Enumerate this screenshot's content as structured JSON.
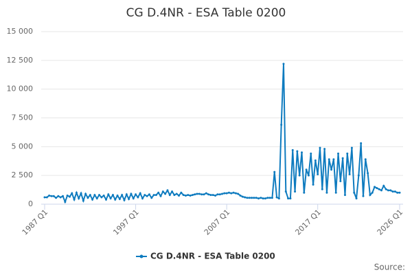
{
  "chart_data": {
    "type": "line",
    "title": "CG D.4NR - ESA Table 0200",
    "source": "Source:",
    "categories": [
      "1987 Q1",
      null,
      null,
      null,
      null,
      null,
      null,
      null,
      null,
      null,
      null,
      null,
      null,
      null,
      null,
      null,
      null,
      null,
      null,
      null,
      null,
      null,
      null,
      null,
      null,
      null,
      null,
      null,
      null,
      null,
      null,
      null,
      null,
      null,
      null,
      null,
      null,
      null,
      null,
      null,
      "1997 Q1",
      null,
      null,
      null,
      null,
      null,
      null,
      null,
      null,
      null,
      null,
      null,
      null,
      null,
      null,
      null,
      null,
      null,
      null,
      null,
      null,
      null,
      null,
      null,
      null,
      null,
      null,
      null,
      null,
      null,
      null,
      null,
      null,
      null,
      null,
      null,
      null,
      null,
      null,
      null,
      "2007 Q1",
      null,
      null,
      null,
      null,
      null,
      null,
      null,
      null,
      null,
      null,
      null,
      null,
      null,
      null,
      null,
      null,
      null,
      null,
      null,
      null,
      null,
      null,
      null,
      null,
      null,
      null,
      null,
      null,
      null,
      null,
      null,
      null,
      null,
      null,
      null,
      null,
      null,
      null,
      null,
      "2017 Q1",
      null,
      null,
      null,
      null,
      null,
      null,
      null,
      null,
      null,
      null,
      null,
      null,
      null,
      null,
      null,
      null,
      null,
      null,
      null,
      null,
      null,
      null,
      null,
      null,
      null,
      null,
      null,
      null,
      null,
      null,
      null,
      null,
      null,
      null,
      null,
      "2026 Q1"
    ],
    "series": [
      {
        "name": "CG D.4NR - ESA Table 0200",
        "color": "#0e7bbf",
        "values": [
          600,
          600,
          750,
          700,
          700,
          550,
          700,
          600,
          700,
          200,
          750,
          650,
          950,
          400,
          1000,
          500,
          950,
          300,
          900,
          550,
          800,
          400,
          800,
          500,
          800,
          600,
          750,
          400,
          850,
          500,
          800,
          400,
          750,
          450,
          800,
          350,
          850,
          450,
          900,
          500,
          850,
          600,
          950,
          500,
          800,
          700,
          850,
          550,
          800,
          800,
          1000,
          700,
          1100,
          900,
          1200,
          800,
          1100,
          800,
          900,
          750,
          1000,
          800,
          750,
          800,
          750,
          800,
          850,
          900,
          900,
          850,
          850,
          950,
          850,
          800,
          800,
          750,
          850,
          850,
          900,
          950,
          950,
          1000,
          950,
          1000,
          950,
          900,
          750,
          650,
          600,
          550,
          550,
          550,
          550,
          550,
          500,
          550,
          500,
          500,
          550,
          550,
          550,
          2800,
          600,
          500,
          6900,
          12200,
          1100,
          500,
          500,
          4700,
          1100,
          4600,
          2500,
          4500,
          1000,
          3000,
          2500,
          4400,
          1700,
          3800,
          2600,
          4900,
          1300,
          4800,
          1000,
          3900,
          3000,
          3900,
          1000,
          4400,
          2000,
          4000,
          800,
          4400,
          2600,
          4900,
          1000,
          500,
          2500,
          5300,
          700,
          3900,
          2700,
          800,
          1000,
          1500,
          1400,
          1300,
          1200,
          1600,
          1300,
          1200,
          1200,
          1100,
          1100,
          1000,
          1000
        ]
      }
    ],
    "ylim": [
      0,
      15000
    ],
    "yticks": [
      0,
      {
        "value": 2500,
        "label": "2 500"
      },
      {
        "value": 5000,
        "label": "5 000"
      },
      {
        "value": 7500,
        "label": "7 500"
      },
      {
        "value": 10000,
        "label": "10 000"
      },
      {
        "value": 12500,
        "label": "12 500"
      },
      {
        "value": 15000,
        "label": "15 000"
      }
    ],
    "grid": true
  }
}
